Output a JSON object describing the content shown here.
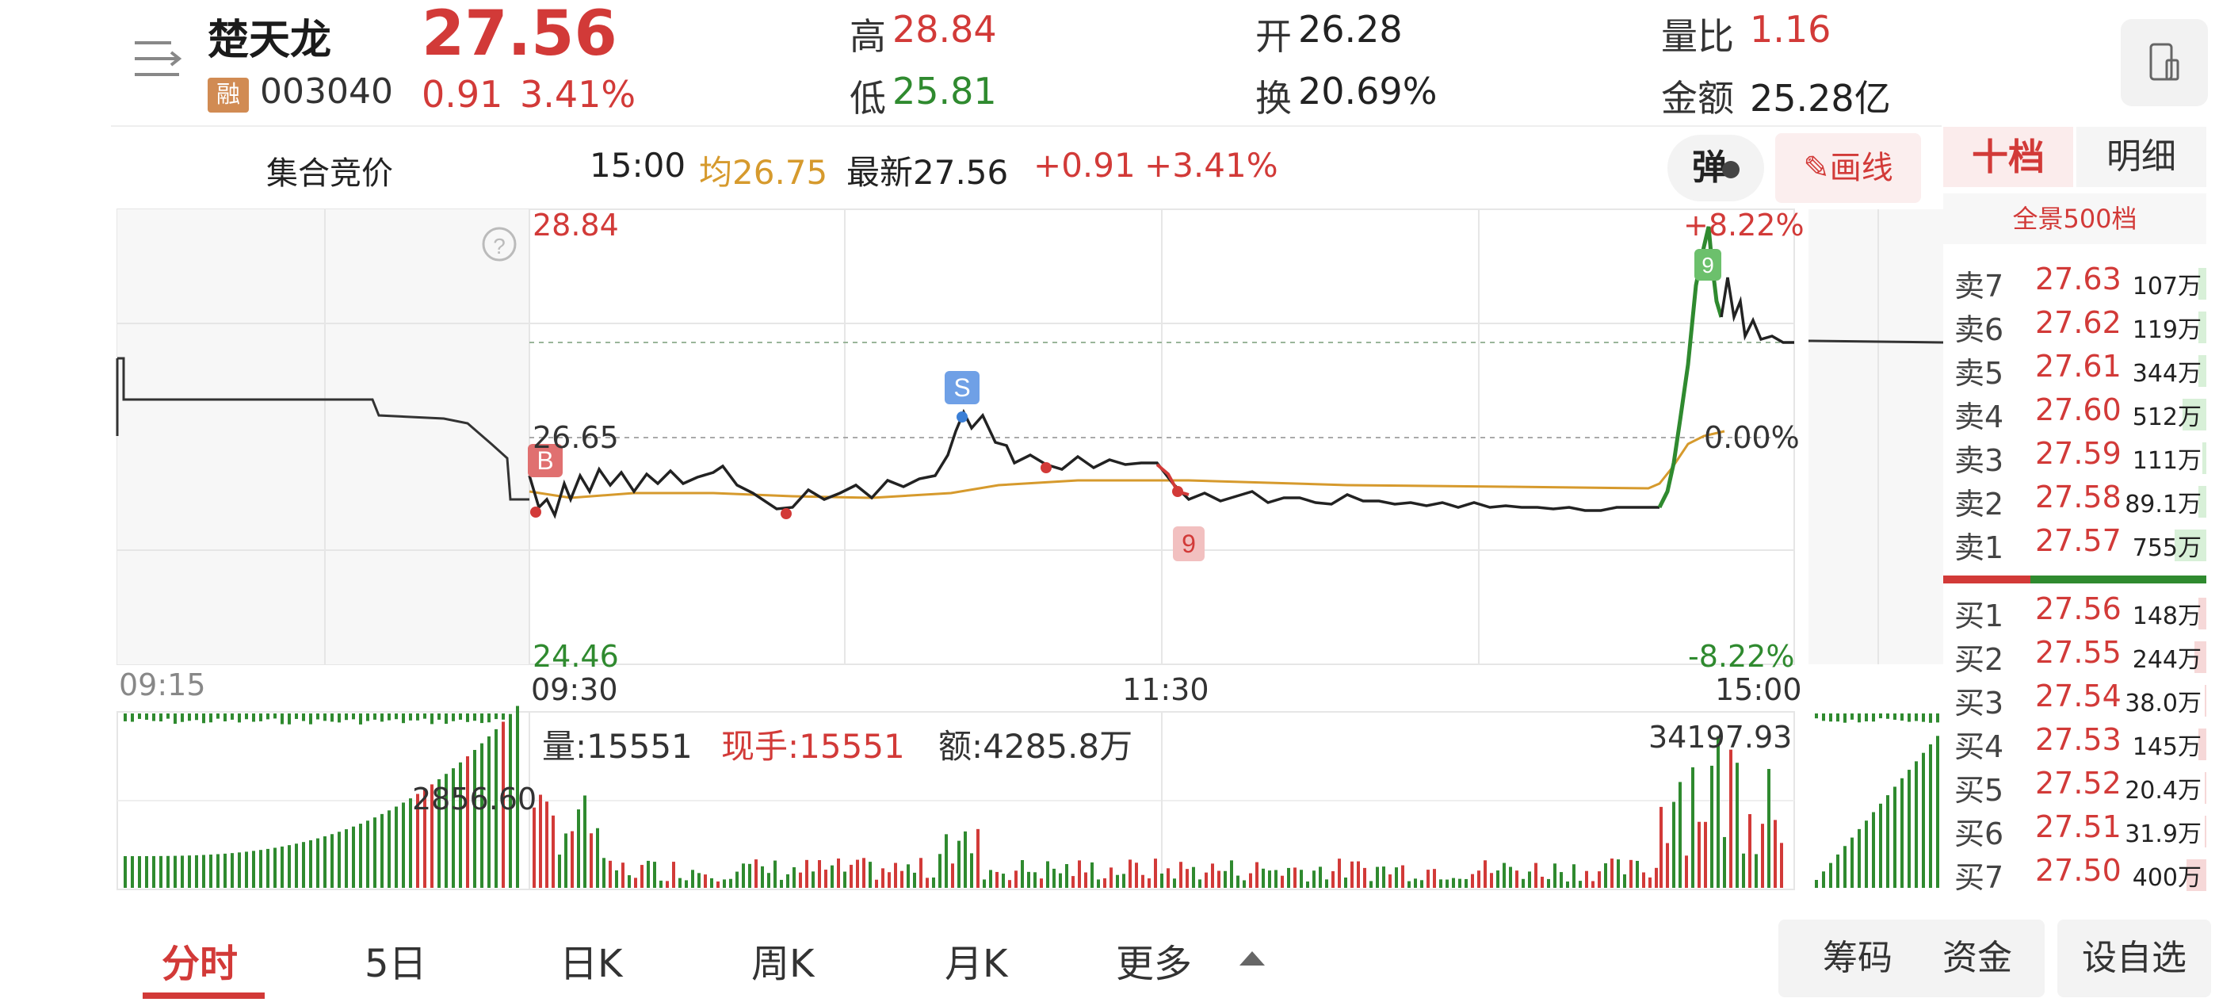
{
  "header": {
    "stock_name": "楚天龙",
    "margin_badge": "融",
    "stock_code": "003040",
    "price": "27.56",
    "change": "0.91",
    "change_pct": "3.41%",
    "high_label": "高",
    "high": "28.84",
    "low_label": "低",
    "low": "25.81",
    "open_label": "开",
    "open": "26.28",
    "turnover_label": "换",
    "turnover": "20.69%",
    "vol_ratio_label": "量比",
    "vol_ratio": "1.16",
    "amount_label": "金额",
    "amount": "25.28亿",
    "icons": [
      "menu-icon",
      "phone-icon"
    ]
  },
  "subheader": {
    "aggregate_auction": "集合竞价",
    "time": "15:00",
    "avg": "均26.75",
    "latest": "最新27.56",
    "change": "+0.91",
    "change_pct": "+3.41%",
    "danmu_button": "弹",
    "draw_button": "画线"
  },
  "order_book": {
    "tab_ten": "十档",
    "tab_detail": "明细",
    "full_depth": "全景500档",
    "asks": [
      {
        "label": "卖7",
        "price": "27.63",
        "vol": "107万"
      },
      {
        "label": "卖6",
        "price": "27.62",
        "vol": "119万"
      },
      {
        "label": "卖5",
        "price": "27.61",
        "vol": "344万"
      },
      {
        "label": "卖4",
        "price": "27.60",
        "vol": "512万"
      },
      {
        "label": "卖3",
        "price": "27.59",
        "vol": "111万"
      },
      {
        "label": "卖2",
        "price": "27.58",
        "vol": "89.1万"
      },
      {
        "label": "卖1",
        "price": "27.57",
        "vol": "755万"
      }
    ],
    "bids": [
      {
        "label": "买1",
        "price": "27.56",
        "vol": "148万"
      },
      {
        "label": "买2",
        "price": "27.55",
        "vol": "244万"
      },
      {
        "label": "买3",
        "price": "27.54",
        "vol": "38.0万"
      },
      {
        "label": "买4",
        "price": "27.53",
        "vol": "145万"
      },
      {
        "label": "买5",
        "price": "27.52",
        "vol": "20.4万"
      },
      {
        "label": "买6",
        "price": "27.51",
        "vol": "31.9万"
      },
      {
        "label": "买7",
        "price": "27.50",
        "vol": "400万"
      }
    ]
  },
  "chart": {
    "price_high": "28.84",
    "pre_close": "26.65",
    "price_low": "24.46",
    "pct_high": "+8.22%",
    "pct_zero": "0.00%",
    "pct_low": "-8.22%",
    "time_start_auction": "09:15",
    "time_open": "09:30",
    "time_mid": "11:30",
    "time_close": "15:00",
    "marker_b": "B",
    "marker_s": "S",
    "marker_9": "9",
    "marker_top": "9",
    "help_icon": "?",
    "volume_label": "量:15551",
    "current_hand": "现手:15551",
    "amount_label": "额:4285.8万",
    "vol_max": "34197.93",
    "vol_auction": "2856.60"
  },
  "bottom_tabs": [
    "分时",
    "5日",
    "日K",
    "周K",
    "月K",
    "更多"
  ],
  "bottom_buttons": [
    "筹码",
    "资金",
    "设自选"
  ]
}
